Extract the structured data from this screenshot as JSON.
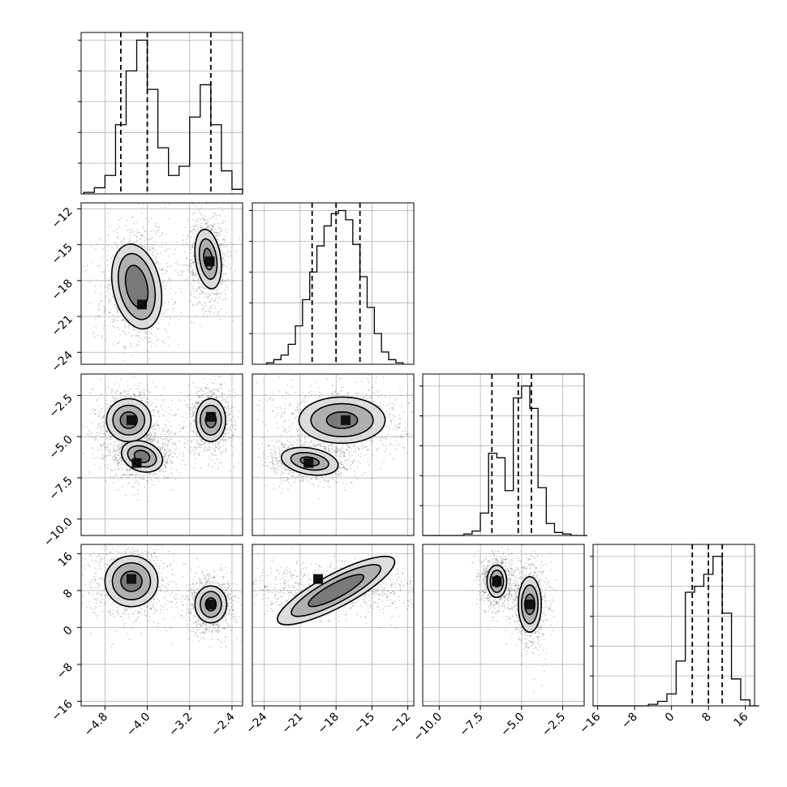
{
  "chart_data": {
    "type": "corner",
    "grid": true,
    "dimensions": [
      {
        "range": [
          -5.25,
          -2.2
        ],
        "ticks": [
          -4.8,
          -4.0,
          -3.2,
          -2.4
        ],
        "tick_labels": [
          "−4.8",
          "−4.0",
          "−3.2",
          "−2.4"
        ],
        "quantiles": [
          -4.5,
          -4.0,
          -2.8
        ],
        "hist_x": [
          -5.1,
          -4.9,
          -4.7,
          -4.5,
          -4.3,
          -4.1,
          -3.9,
          -3.7,
          -3.5,
          -3.3,
          -3.1,
          -2.9,
          -2.7,
          -2.5,
          -2.3
        ],
        "hist_y": [
          0.01,
          0.04,
          0.12,
          0.45,
          0.8,
          1.0,
          0.68,
          0.3,
          0.12,
          0.18,
          0.5,
          0.71,
          0.45,
          0.15,
          0.03
        ],
        "hist_ylim": [
          0,
          1.05
        ]
      },
      {
        "range": [
          -25,
          -11.5
        ],
        "ticks": [
          -24,
          -21,
          -18,
          -15,
          -12
        ],
        "tick_labels": [
          "−24",
          "−21",
          "−18",
          "−15",
          "−12"
        ],
        "quantiles": [
          -20,
          -18,
          -16
        ],
        "hist_x": [
          -23.5,
          -22.9,
          -22.3,
          -21.7,
          -21.1,
          -20.5,
          -19.9,
          -19.3,
          -18.7,
          -18.1,
          -17.5,
          -16.9,
          -16.3,
          -15.7,
          -15.1,
          -14.5,
          -13.9,
          -13.3,
          -12.7
        ],
        "hist_y": [
          0.01,
          0.03,
          0.06,
          0.13,
          0.25,
          0.42,
          0.6,
          0.77,
          0.9,
          0.98,
          1.0,
          0.94,
          0.78,
          0.57,
          0.37,
          0.2,
          0.08,
          0.03,
          0.01
        ],
        "hist_ylim": [
          0,
          1.05
        ]
      },
      {
        "range": [
          -11,
          -1.2
        ],
        "ticks": [
          -10.0,
          -7.5,
          -5.0,
          -2.5
        ],
        "tick_labels": [
          "−10.0",
          "−7.5",
          "−5.0",
          "−2.5"
        ],
        "quantiles": [
          -6.8,
          -5.2,
          -4.4
        ],
        "hist_x": [
          -10.75,
          -10.25,
          -9.75,
          -9.25,
          -8.75,
          -8.25,
          -7.75,
          -7.25,
          -6.75,
          -6.25,
          -5.75,
          -5.25,
          -4.75,
          -4.25,
          -3.75,
          -3.25,
          -2.75,
          -2.25,
          -1.75,
          -1.25
        ],
        "hist_y": [
          0,
          0,
          0,
          0,
          0,
          0.01,
          0.03,
          0.15,
          0.55,
          0.52,
          0.3,
          0.92,
          1.0,
          0.85,
          0.32,
          0.08,
          0.02,
          0.01,
          0,
          0
        ],
        "hist_ylim": [
          0,
          1.08
        ]
      },
      {
        "range": [
          -17,
          18
        ],
        "ticks": [
          -16,
          -8,
          0,
          8,
          16
        ],
        "tick_labels": [
          "−16",
          "−8",
          "0",
          "8",
          "16"
        ],
        "quantiles": [
          4.5,
          8,
          11
        ],
        "hist_x": [
          -16,
          -14,
          -12,
          -10,
          -8,
          -6,
          -4,
          -2,
          0,
          2,
          4,
          6,
          8,
          10,
          12,
          14,
          16,
          18
        ],
        "hist_y": [
          0,
          0,
          0,
          0,
          0,
          0,
          0.01,
          0.03,
          0.08,
          0.3,
          0.76,
          0.8,
          0.88,
          1.0,
          0.62,
          0.18,
          0.04,
          0
        ],
        "hist_ylim": [
          0,
          1.08
        ]
      }
    ],
    "pairs": [
      {
        "row": 1,
        "col": 0,
        "modes": [
          {
            "cx": -4.2,
            "cy": -18.5,
            "levels": [
              {
                "rx": 0.45,
                "ry": 3.6,
                "rot": 12
              },
              {
                "rx": 0.33,
                "ry": 2.8,
                "rot": 12
              },
              {
                "rx": 0.2,
                "ry": 1.8,
                "rot": 12
              }
            ],
            "peak": {
              "x": -4.1,
              "y": -20.0
            }
          },
          {
            "cx": -2.85,
            "cy": -16.2,
            "levels": [
              {
                "rx": 0.24,
                "ry": 2.5,
                "rot": 8
              },
              {
                "rx": 0.16,
                "ry": 1.7,
                "rot": 8
              },
              {
                "rx": 0.08,
                "ry": 0.9,
                "rot": 8
              }
            ],
            "peak": {
              "x": -2.82,
              "y": -16.4
            }
          }
        ]
      },
      {
        "row": 2,
        "col": 0,
        "modes": [
          {
            "cx": -4.35,
            "cy": -4.0,
            "levels": [
              {
                "rx": 0.42,
                "ry": 1.3,
                "rot": 0
              },
              {
                "rx": 0.3,
                "ry": 0.9,
                "rot": 0
              },
              {
                "rx": 0.16,
                "ry": 0.5,
                "rot": 0
              }
            ],
            "peak": {
              "x": -4.3,
              "y": -4.0
            }
          },
          {
            "cx": -4.1,
            "cy": -6.2,
            "levels": [
              {
                "rx": 0.4,
                "ry": 0.9,
                "rot": -20
              },
              {
                "rx": 0.28,
                "ry": 0.6,
                "rot": -20
              },
              {
                "rx": 0.15,
                "ry": 0.35,
                "rot": -20
              }
            ],
            "peak": {
              "x": -4.2,
              "y": -6.6
            }
          },
          {
            "cx": -2.8,
            "cy": -4.0,
            "levels": [
              {
                "rx": 0.28,
                "ry": 1.3,
                "rot": 0
              },
              {
                "rx": 0.2,
                "ry": 0.9,
                "rot": 0
              },
              {
                "rx": 0.1,
                "ry": 0.45,
                "rot": 0
              }
            ],
            "peak": {
              "x": -2.8,
              "y": -3.8
            }
          }
        ]
      },
      {
        "row": 2,
        "col": 1,
        "modes": [
          {
            "cx": -17.5,
            "cy": -4.0,
            "levels": [
              {
                "rx": 3.6,
                "ry": 1.4,
                "rot": 0
              },
              {
                "rx": 2.6,
                "ry": 1.0,
                "rot": 0
              },
              {
                "rx": 1.3,
                "ry": 0.5,
                "rot": 0
              }
            ],
            "peak": {
              "x": -17.2,
              "y": -4.0
            }
          },
          {
            "cx": -20.2,
            "cy": -6.5,
            "levels": [
              {
                "rx": 2.4,
                "ry": 0.8,
                "rot": -10
              },
              {
                "rx": 1.6,
                "ry": 0.5,
                "rot": -10
              },
              {
                "rx": 0.8,
                "ry": 0.25,
                "rot": -10
              }
            ],
            "peak": {
              "x": -20.3,
              "y": -6.6
            }
          }
        ]
      },
      {
        "row": 3,
        "col": 0,
        "modes": [
          {
            "cx": -4.3,
            "cy": 10,
            "levels": [
              {
                "rx": 0.5,
                "ry": 5.5,
                "rot": 0
              },
              {
                "rx": 0.36,
                "ry": 4.0,
                "rot": 0
              },
              {
                "rx": 0.2,
                "ry": 2.2,
                "rot": 0
              }
            ],
            "peak": {
              "x": -4.3,
              "y": 10.5
            }
          },
          {
            "cx": -2.8,
            "cy": 5,
            "levels": [
              {
                "rx": 0.3,
                "ry": 4.0,
                "rot": 0
              },
              {
                "rx": 0.2,
                "ry": 2.8,
                "rot": 0
              },
              {
                "rx": 0.1,
                "ry": 1.4,
                "rot": 0
              }
            ],
            "peak": {
              "x": -2.8,
              "y": 5
            }
          }
        ]
      },
      {
        "row": 3,
        "col": 1,
        "modes": [
          {
            "cx": -18,
            "cy": 8,
            "levels": [
              {
                "rx": 5.5,
                "ry": 3.6,
                "rot": 28
              },
              {
                "rx": 4.2,
                "ry": 2.6,
                "rot": 28
              },
              {
                "rx": 2.6,
                "ry": 1.6,
                "rot": 28
              }
            ],
            "peak": {
              "x": -19.5,
              "y": 10.5
            }
          }
        ]
      },
      {
        "row": 3,
        "col": 2,
        "modes": [
          {
            "cx": -6.5,
            "cy": 10,
            "levels": [
              {
                "rx": 0.6,
                "ry": 3.5,
                "rot": 0
              },
              {
                "rx": 0.4,
                "ry": 2.4,
                "rot": 0
              },
              {
                "rx": 0.2,
                "ry": 1.2,
                "rot": 0
              }
            ],
            "peak": {
              "x": -6.5,
              "y": 10
            }
          },
          {
            "cx": -4.5,
            "cy": 5,
            "levels": [
              {
                "rx": 0.7,
                "ry": 6.0,
                "rot": 0
              },
              {
                "rx": 0.5,
                "ry": 4.2,
                "rot": 0
              },
              {
                "rx": 0.3,
                "ry": 2.2,
                "rot": 0
              }
            ],
            "peak": {
              "x": -4.5,
              "y": 5
            }
          }
        ]
      }
    ]
  }
}
